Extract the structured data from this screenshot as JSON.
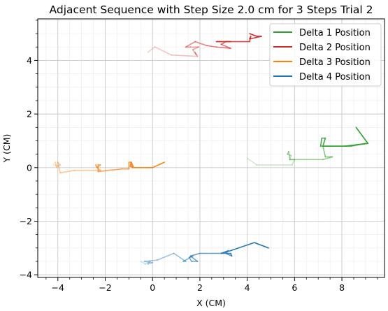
{
  "chart_data": {
    "type": "line",
    "title": "Adjacent Sequence with Step Size 2.0 cm for 3 Steps Trial 2",
    "xlabel": "X (CM)",
    "ylabel": "Y (CM)",
    "xlim": [
      -4.85,
      9.8
    ],
    "ylim": [
      -4.1,
      5.55
    ],
    "x_ticks": [
      -4,
      -2,
      0,
      2,
      4,
      6,
      8
    ],
    "x_tick_labels": [
      "−4",
      "−2",
      "0",
      "2",
      "4",
      "6",
      "8"
    ],
    "y_ticks": [
      -4,
      -2,
      0,
      2,
      4
    ],
    "y_tick_labels": [
      "−4",
      "−2",
      "0",
      "2",
      "4"
    ],
    "grid": true,
    "minor_grid": true,
    "legend_position": "top-right",
    "series": [
      {
        "name": "Delta 1 Position",
        "color": "#2ca02c",
        "x": [
          4.0,
          4.4,
          5.9,
          6.0,
          5.8,
          5.85,
          5.7,
          5.75,
          5.8,
          7.2,
          7.6,
          7.3,
          7.2,
          8.1,
          8.4,
          9.0,
          8.3,
          7.2,
          7.2,
          7.1,
          7.15,
          7.3,
          7.2,
          8.1,
          9.1,
          8.6
        ],
        "y": [
          0.35,
          0.1,
          0.1,
          0.3,
          0.3,
          0.45,
          0.5,
          0.6,
          0.3,
          0.3,
          0.4,
          0.4,
          0.8,
          0.8,
          0.8,
          0.9,
          0.8,
          0.8,
          0.8,
          0.8,
          1.1,
          1.1,
          0.8,
          0.8,
          0.9,
          1.5
        ]
      },
      {
        "name": "Delta 2 Position",
        "color": "#d62728",
        "x": [
          -0.2,
          0.1,
          0.8,
          1.9,
          1.8,
          1.85,
          1.7,
          1.95,
          1.6,
          1.4,
          1.8,
          2.3,
          2.7,
          3.3,
          2.9,
          3.1,
          3.3,
          2.7,
          2.75,
          4.1,
          4.15,
          4.1,
          4.6,
          4.4,
          4.1
        ],
        "y": [
          4.3,
          4.5,
          4.2,
          4.15,
          4.3,
          4.2,
          4.4,
          4.5,
          4.5,
          4.5,
          4.7,
          4.55,
          4.5,
          4.45,
          4.6,
          4.7,
          4.7,
          4.7,
          4.7,
          4.7,
          4.9,
          4.8,
          4.9,
          4.9,
          5.0
        ]
      },
      {
        "name": "Delta 3 Position",
        "color": "#ff7f0e",
        "x": [
          -4.2,
          -4.1,
          -4.05,
          -4.1,
          -4.0,
          -3.9,
          -4.0,
          -3.9,
          -3.3,
          -2.2,
          -2.3,
          -2.4,
          -2.35,
          -2.2,
          -2.3,
          -2.3,
          -1.3,
          -1.0,
          -1.0,
          -0.9,
          -0.95,
          -0.8,
          -0.9,
          -0.85,
          0.0,
          0.5
        ],
        "y": [
          0.1,
          0.2,
          0.0,
          0.1,
          0.05,
          0.1,
          0.2,
          -0.2,
          -0.1,
          -0.1,
          -0.05,
          0.1,
          0.0,
          0.1,
          0.1,
          -0.15,
          -0.05,
          -0.05,
          0.2,
          0.2,
          0.05,
          0.0,
          0.2,
          0.0,
          0.0,
          0.2
        ]
      },
      {
        "name": "Delta 4 Position",
        "color": "#1f77b4",
        "x": [
          -0.5,
          -0.3,
          -0.1,
          -0.2,
          0.0,
          -0.35,
          0.2,
          0.9,
          1.4,
          1.3,
          1.7,
          1.55,
          1.65,
          1.9,
          1.6,
          2.0,
          2.9,
          3.2,
          3.1,
          3.35,
          3.3,
          2.9,
          3.3,
          4.3,
          4.9
        ],
        "y": [
          -3.5,
          -3.6,
          -3.5,
          -3.6,
          -3.55,
          -3.5,
          -3.45,
          -3.2,
          -3.5,
          -3.5,
          -3.3,
          -3.35,
          -3.5,
          -3.5,
          -3.3,
          -3.2,
          -3.2,
          -3.1,
          -3.2,
          -3.3,
          -3.2,
          -3.2,
          -3.1,
          -2.8,
          -3.0
        ]
      }
    ]
  }
}
